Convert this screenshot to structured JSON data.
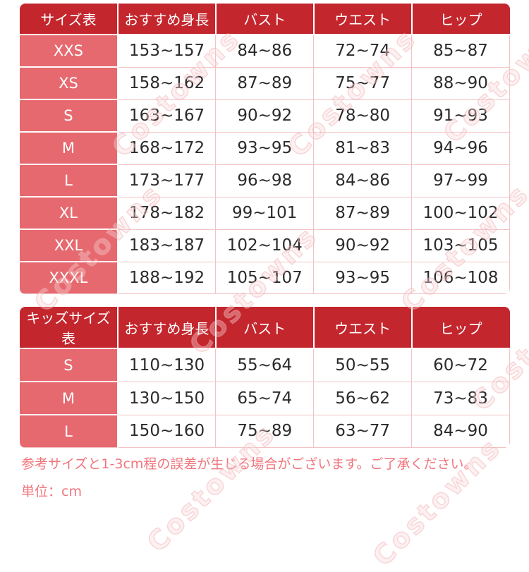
{
  "colors": {
    "header_bg": "#c4262d",
    "size_column_bg": "#e6696f",
    "data_border": "#f2c3c4",
    "data_text": "#2b2b2b",
    "note_text": "#f0757d"
  },
  "watermark": {
    "text": "Costowns"
  },
  "adult_table": {
    "headers": [
      "サイズ表",
      "おすすめ身長",
      "バスト",
      "ウエスト",
      "ヒップ"
    ],
    "rows": [
      [
        "XXS",
        "153~157",
        "84~86",
        "72~74",
        "85~87"
      ],
      [
        "XS",
        "158~162",
        "87~89",
        "75~77",
        "88~90"
      ],
      [
        "S",
        "163~167",
        "90~92",
        "78~80",
        "91~93"
      ],
      [
        "M",
        "168~172",
        "93~95",
        "81~83",
        "94~96"
      ],
      [
        "L",
        "173~177",
        "96~98",
        "84~86",
        "97~99"
      ],
      [
        "XL",
        "178~182",
        "99~101",
        "87~89",
        "100~102"
      ],
      [
        "XXL",
        "183~187",
        "102~104",
        "90~92",
        "103~105"
      ],
      [
        "XXXL",
        "188~192",
        "105~107",
        "93~95",
        "106~108"
      ]
    ]
  },
  "kids_table": {
    "headers": [
      "キッズサイズ表",
      "おすすめ身長",
      "バスト",
      "ウエスト",
      "ヒップ"
    ],
    "rows": [
      [
        "S",
        "110~130",
        "55~64",
        "50~55",
        "60~72"
      ],
      [
        "M",
        "130~150",
        "65~74",
        "56~62",
        "73~83"
      ],
      [
        "L",
        "150~160",
        "75~89",
        "63~77",
        "84~90"
      ]
    ]
  },
  "notes": {
    "line1": "参考サイズと1-3cm程の誤差が生じる場合がございます。ご了承ください。",
    "line2": "単位：cm"
  }
}
